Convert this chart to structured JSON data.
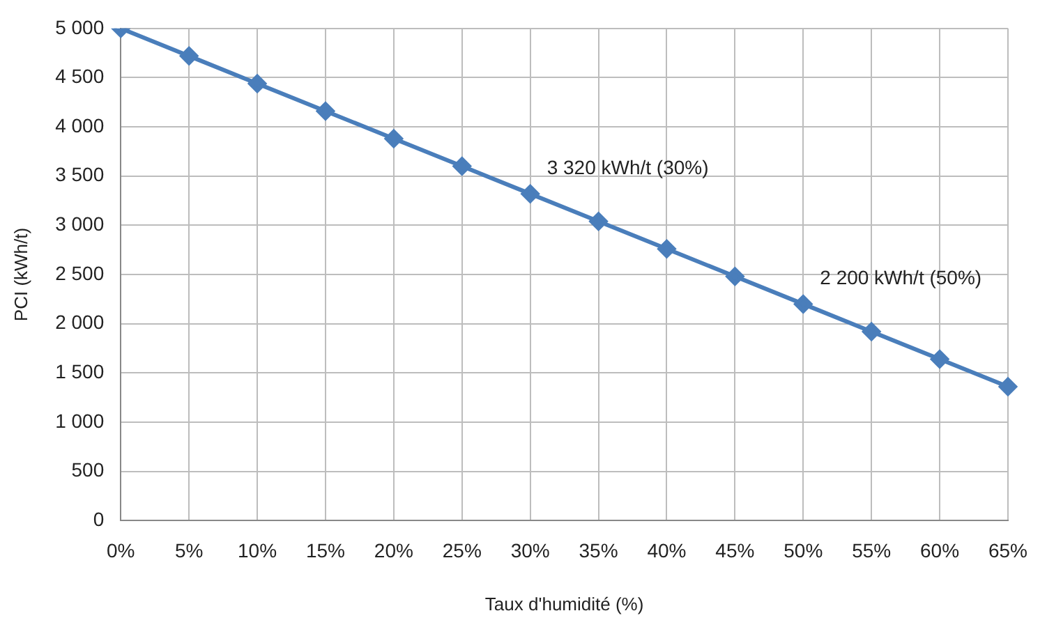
{
  "chart_data": {
    "type": "line",
    "xlabel": "Taux d'humidité (%)",
    "ylabel": "PCI (kWh/t)",
    "categories": [
      "0%",
      "5%",
      "10%",
      "15%",
      "20%",
      "25%",
      "30%",
      "35%",
      "40%",
      "45%",
      "50%",
      "55%",
      "60%",
      "65%"
    ],
    "series": [
      {
        "color": "#4a7ebb",
        "values": [
          5000,
          4720,
          4440,
          4160,
          3880,
          3600,
          3320,
          3040,
          2760,
          2480,
          2200,
          1920,
          1640,
          1360
        ]
      }
    ],
    "ylim": [
      0,
      5000
    ],
    "yticks": [
      {
        "value": 0,
        "label": "0"
      },
      {
        "value": 500,
        "label": "500"
      },
      {
        "value": 1000,
        "label": "1 000"
      },
      {
        "value": 1500,
        "label": "1 500"
      },
      {
        "value": 2000,
        "label": "2 000"
      },
      {
        "value": 2500,
        "label": "2 500"
      },
      {
        "value": 3000,
        "label": "3 000"
      },
      {
        "value": 3500,
        "label": "3 500"
      },
      {
        "value": 4000,
        "label": "4 000"
      },
      {
        "value": 4500,
        "label": "4 500"
      },
      {
        "value": 5000,
        "label": "5 000"
      }
    ],
    "annotations": [
      {
        "text": "3 320 kWh/t (30%)",
        "x": "30%",
        "y": 3320
      },
      {
        "text": "2 200 kWh/t (50%)",
        "x": "50%",
        "y": 2200
      }
    ],
    "grid": true,
    "legend": false,
    "marker": "diamond",
    "line_style": "solid"
  }
}
